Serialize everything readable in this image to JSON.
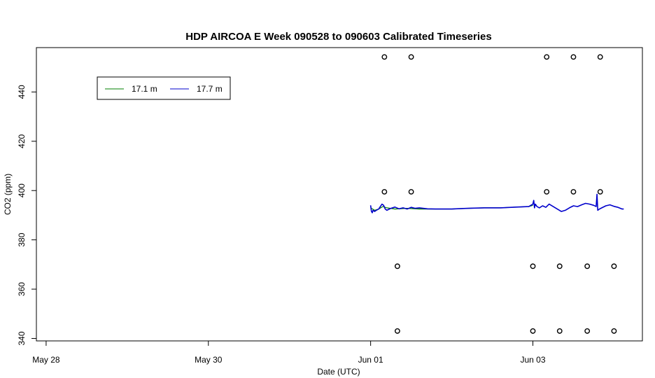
{
  "chart_data": {
    "type": "line",
    "title": "HDP AIRCOA E  Week 090528 to 090603  Calibrated Timeseries",
    "xlabel": "Date (UTC)",
    "ylabel": "CO2 (ppm)",
    "x_unit": "days since May 28 00:00 UTC",
    "xlim": [
      -0.12,
      7.35
    ],
    "ylim": [
      339,
      458
    ],
    "x_ticks": [
      {
        "value": 0,
        "label": "May 28"
      },
      {
        "value": 2,
        "label": "May 30"
      },
      {
        "value": 4,
        "label": "Jun 01"
      },
      {
        "value": 6,
        "label": "Jun 03"
      }
    ],
    "y_ticks": [
      {
        "value": 340,
        "label": "340"
      },
      {
        "value": 360,
        "label": "360"
      },
      {
        "value": 380,
        "label": "380"
      },
      {
        "value": 400,
        "label": "400"
      },
      {
        "value": 420,
        "label": "420"
      },
      {
        "value": 440,
        "label": "440"
      }
    ],
    "legend": {
      "position": "top-left",
      "entries": [
        {
          "label": "17.1 m",
          "color": "#008000"
        },
        {
          "label": "17.7 m",
          "color": "#0000cc"
        }
      ]
    },
    "series": [
      {
        "name": "17.1 m",
        "color": "#008000",
        "x": [
          4.0,
          4.05,
          4.1,
          4.15,
          4.2,
          4.3,
          4.45,
          4.6,
          4.8,
          5.0,
          5.2,
          5.4,
          5.6,
          5.8,
          5.95,
          6.0
        ],
        "y": [
          393.0,
          392.0,
          392.5,
          393.5,
          393.0,
          392.5,
          392.8,
          392.5,
          392.5,
          392.5,
          392.8,
          393.0,
          393.0,
          393.3,
          393.5,
          394.0
        ]
      },
      {
        "name": "17.7 m",
        "color": "#0000cc",
        "x": [
          4.0,
          4.01,
          4.02,
          4.03,
          4.05,
          4.07,
          4.1,
          4.12,
          4.14,
          4.16,
          4.18,
          4.2,
          4.25,
          4.3,
          4.35,
          4.4,
          4.45,
          4.5,
          4.55,
          4.6,
          4.7,
          4.8,
          4.9,
          5.0,
          5.2,
          5.4,
          5.6,
          5.8,
          5.95,
          6.0,
          6.01,
          6.02,
          6.03,
          6.05,
          6.08,
          6.12,
          6.16,
          6.2,
          6.25,
          6.3,
          6.35,
          6.4,
          6.45,
          6.5,
          6.55,
          6.6,
          6.65,
          6.7,
          6.75,
          6.78,
          6.79,
          6.8,
          6.82,
          6.85,
          6.9,
          6.95,
          7.0,
          7.05,
          7.1,
          7.12
        ],
        "y": [
          394.0,
          391.5,
          391.0,
          392.0,
          391.5,
          392.0,
          392.5,
          393.5,
          394.5,
          394.0,
          392.5,
          392.0,
          392.8,
          393.3,
          392.6,
          393.0,
          392.5,
          393.2,
          392.8,
          393.0,
          392.6,
          392.5,
          392.5,
          392.5,
          392.8,
          393.0,
          393.0,
          393.3,
          393.5,
          394.5,
          396.0,
          393.0,
          394.5,
          393.5,
          393.0,
          393.8,
          393.2,
          394.5,
          393.5,
          392.5,
          391.5,
          392.0,
          393.0,
          393.8,
          393.5,
          394.2,
          394.8,
          394.5,
          394.0,
          393.5,
          398.5,
          392.0,
          392.5,
          393.0,
          393.8,
          394.2,
          393.6,
          393.2,
          392.5,
          392.5
        ]
      }
    ],
    "points": {
      "name": "",
      "marker": "open-circle",
      "color": "#000000",
      "x": [
        4.17,
        4.5,
        6.17,
        6.5,
        6.83,
        4.17,
        4.5,
        6.17,
        6.5,
        6.83,
        4.33,
        6.0,
        6.33,
        6.67,
        7.0,
        4.33,
        6.0,
        6.33,
        6.67,
        7.0
      ],
      "y": [
        454.2,
        454.2,
        454.2,
        454.2,
        454.2,
        399.5,
        399.5,
        399.5,
        399.5,
        399.5,
        369.3,
        369.3,
        369.3,
        369.3,
        369.3,
        343.0,
        343.0,
        343.0,
        343.0,
        343.0
      ]
    },
    "grid": false
  }
}
